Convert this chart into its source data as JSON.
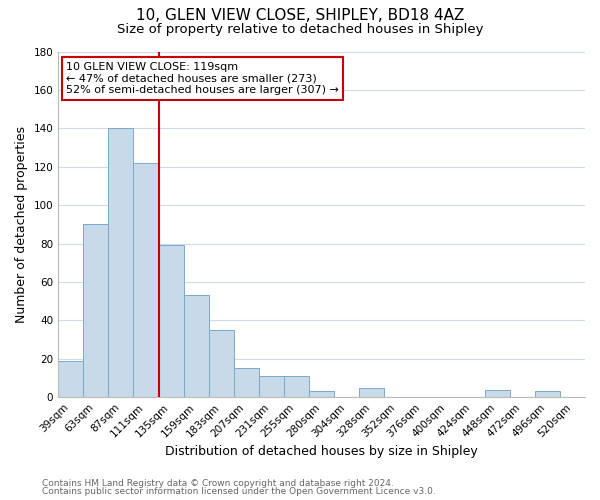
{
  "title": "10, GLEN VIEW CLOSE, SHIPLEY, BD18 4AZ",
  "subtitle": "Size of property relative to detached houses in Shipley",
  "xlabel": "Distribution of detached houses by size in Shipley",
  "ylabel": "Number of detached properties",
  "bar_labels": [
    "39sqm",
    "63sqm",
    "87sqm",
    "111sqm",
    "135sqm",
    "159sqm",
    "183sqm",
    "207sqm",
    "231sqm",
    "255sqm",
    "280sqm",
    "304sqm",
    "328sqm",
    "352sqm",
    "376sqm",
    "400sqm",
    "424sqm",
    "448sqm",
    "472sqm",
    "496sqm",
    "520sqm"
  ],
  "bar_values": [
    19,
    90,
    140,
    122,
    79,
    53,
    35,
    15,
    11,
    11,
    3,
    0,
    5,
    0,
    0,
    0,
    0,
    4,
    0,
    3,
    0
  ],
  "bar_color": "#c8daea",
  "bar_edge_color": "#7aaac8",
  "vline_x": 3.5,
  "vline_color": "#cc0000",
  "ylim": [
    0,
    180
  ],
  "yticks": [
    0,
    20,
    40,
    60,
    80,
    100,
    120,
    140,
    160,
    180
  ],
  "annotation_title": "10 GLEN VIEW CLOSE: 119sqm",
  "annotation_line1": "← 47% of detached houses are smaller (273)",
  "annotation_line2": "52% of semi-detached houses are larger (307) →",
  "annotation_box_color": "#ffffff",
  "annotation_box_edge": "#cc0000",
  "footer1": "Contains HM Land Registry data © Crown copyright and database right 2024.",
  "footer2": "Contains public sector information licensed under the Open Government Licence v3.0.",
  "title_fontsize": 11,
  "subtitle_fontsize": 9.5,
  "axis_label_fontsize": 9,
  "tick_fontsize": 7.5,
  "annotation_fontsize": 8,
  "footer_fontsize": 6.5,
  "background_color": "#ffffff",
  "grid_color": "#ccdaeb"
}
